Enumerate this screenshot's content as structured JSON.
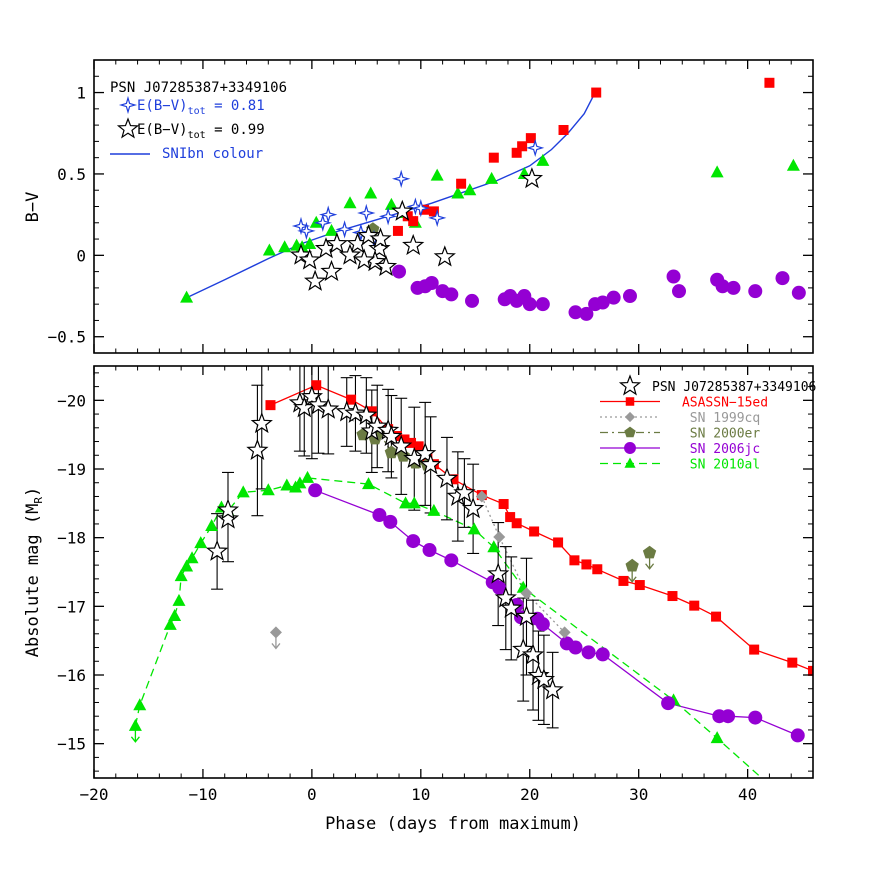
{
  "chart_data": [
    {
      "type": "scatter",
      "panel": "top",
      "ylabel": "B−V",
      "xlim": [
        -20,
        46
      ],
      "ylim": [
        -0.6,
        1.2
      ],
      "x_ticks": [
        -20,
        -10,
        0,
        10,
        20,
        30,
        40
      ],
      "y_ticks": [
        -0.5,
        0,
        0.5,
        1
      ],
      "y_tick_labels": [
        "−0.5",
        "0",
        "0.5",
        "1"
      ],
      "legend": {
        "position": "top-left",
        "title": "PSN J07285387+3349106",
        "entries": [
          {
            "label": "E(B−V)",
            "sub": "tot",
            "value": "= 0.81",
            "color": "#1f3fdc",
            "marker": "star4"
          },
          {
            "label": "E(B−V)",
            "sub": "tot",
            "value": "= 0.99",
            "color": "#000000",
            "marker": "star5"
          },
          {
            "label": "SNIbn colour",
            "color": "#1f3fdc",
            "marker": "line"
          }
        ]
      },
      "series": [
        {
          "key": "curve",
          "color": "#1f3fdc",
          "marker": "line",
          "x": [
            -11.5,
            -8,
            -4,
            -1,
            2,
            5,
            8,
            11,
            14,
            17,
            20,
            22,
            23.5,
            25,
            26
          ],
          "y": [
            -0.26,
            -0.15,
            -0.02,
            0.07,
            0.14,
            0.2,
            0.26,
            0.32,
            0.39,
            0.46,
            0.55,
            0.65,
            0.75,
            0.87,
            1.0
          ]
        },
        {
          "key": "star4",
          "color": "#1f3fdc",
          "marker": "star4",
          "x": [
            -1,
            1,
            -0.5,
            1.5,
            3,
            5,
            7,
            4.5,
            9.5,
            8.2,
            20.5,
            11.5,
            10,
            5.7
          ],
          "y": [
            0.18,
            0.2,
            0.15,
            0.25,
            0.16,
            0.26,
            0.24,
            0.14,
            0.3,
            0.47,
            0.66,
            0.23,
            0.29,
            0.1
          ]
        },
        {
          "key": "star5",
          "color": "#000000",
          "marker": "star5",
          "x": [
            -1,
            -0.2,
            0.3,
            1.3,
            2.3,
            1.8,
            4.2,
            5.2,
            6.2,
            5.8,
            6.8,
            4.8,
            3.5,
            6.3,
            8.3,
            9.3,
            12.2,
            20.2
          ],
          "y": [
            0.0,
            -0.03,
            -0.16,
            0.04,
            0.07,
            -0.1,
            0.07,
            0.12,
            0.04,
            -0.04,
            -0.07,
            -0.03,
            0.0,
            0.1,
            0.27,
            0.06,
            -0.01,
            0.47
          ]
        },
        {
          "key": "asassn",
          "color": "#ff0000",
          "marker": "square",
          "x": [
            7.9,
            8.8,
            9.3,
            10.3,
            11.2,
            13.7,
            16.7,
            18.8,
            19.3,
            20.1,
            23.1,
            26.1,
            42
          ],
          "y": [
            0.15,
            0.24,
            0.21,
            0.28,
            0.27,
            0.44,
            0.6,
            0.63,
            0.67,
            0.72,
            0.77,
            1.0,
            1.06
          ]
        },
        {
          "key": "sn2000er",
          "color": "#6b7b43",
          "marker": "pentagon",
          "x": [
            5.6
          ],
          "y": [
            0.16
          ]
        },
        {
          "key": "sn2006jc",
          "color": "#9400d3",
          "marker": "circle",
          "x": [
            8,
            9.7,
            10.4,
            11,
            12,
            12.8,
            14.7,
            17.7,
            18.2,
            18.8,
            19.5,
            20,
            21.2,
            24.2,
            25.2,
            26,
            26.7,
            27.7,
            29.2,
            33.2,
            33.7,
            37.2,
            37.7,
            38.7,
            40.7,
            43.2,
            44.7
          ],
          "y": [
            -0.1,
            -0.2,
            -0.19,
            -0.17,
            -0.22,
            -0.24,
            -0.28,
            -0.27,
            -0.25,
            -0.28,
            -0.25,
            -0.3,
            -0.3,
            -0.35,
            -0.36,
            -0.3,
            -0.29,
            -0.26,
            -0.25,
            -0.13,
            -0.22,
            -0.15,
            -0.19,
            -0.2,
            -0.22,
            -0.14,
            -0.23
          ]
        },
        {
          "key": "sn2010al",
          "color": "#00e600",
          "marker": "triangle",
          "x": [
            -11.5,
            -3.9,
            -2.5,
            -1.4,
            -0.9,
            -0.2,
            0.4,
            1.8,
            3.5,
            5.4,
            7.3,
            8.4,
            9.5,
            11.5,
            13.4,
            14.5,
            16.5,
            19.5,
            21.2,
            37.2,
            44.2
          ],
          "y": [
            -0.26,
            0.03,
            0.05,
            0.06,
            0.05,
            0.07,
            0.2,
            0.15,
            0.32,
            0.38,
            0.31,
            0.26,
            0.2,
            0.49,
            0.38,
            0.4,
            0.47,
            0.5,
            0.58,
            0.51,
            0.55
          ]
        }
      ]
    },
    {
      "type": "scatter",
      "panel": "bottom",
      "xlabel": "Phase (days from maximum)",
      "ylabel": "Absolute mag (M",
      "ylabel_sub": "R",
      "ylabel_suffix": ")",
      "xlim": [
        -20,
        46
      ],
      "ylim": [
        -14.5,
        -20.5
      ],
      "x_ticks": [
        -20,
        -10,
        0,
        10,
        20,
        30,
        40
      ],
      "x_tick_labels": [
        "−20",
        "−10",
        "0",
        "10",
        "20",
        "30",
        "40"
      ],
      "y_ticks": [
        -15,
        -16,
        -17,
        -18,
        -19,
        -20
      ],
      "y_tick_labels": [
        "−15",
        "−16",
        "−17",
        "−18",
        "−19",
        "−20"
      ],
      "legend": {
        "position": "top-right",
        "entries": [
          {
            "label": "PSN J07285387+3349106",
            "color": "#000000",
            "marker": "star5",
            "line": "none"
          },
          {
            "label": "ASASSN−15ed",
            "color": "#ff0000",
            "marker": "square",
            "line": "solid"
          },
          {
            "label": "SN 1999cq",
            "color": "#999999",
            "marker": "diamond",
            "line": "dotted"
          },
          {
            "label": "SN 2000er",
            "color": "#6b7b43",
            "marker": "pentagon",
            "line": "dashdot"
          },
          {
            "label": "SN 2006jc",
            "color": "#9400d3",
            "marker": "circle",
            "line": "solid"
          },
          {
            "label": "SN 2010al",
            "color": "#00e600",
            "marker": "triangle",
            "line": "dashed"
          }
        ]
      },
      "series": [
        {
          "key": "psn",
          "color": "#000000",
          "marker": "star5",
          "x": [
            -8.7,
            -7.7,
            -7.7,
            -5,
            -4.6,
            -1.1,
            -0.7,
            0,
            0.6,
            1.5,
            3.2,
            4,
            5,
            5.5,
            6,
            7,
            7.3,
            8.2,
            9.4,
            10.4,
            10.9,
            12.4,
            13.4,
            14,
            14.8,
            17.1,
            17.8,
            18.3,
            19.4,
            19.7,
            20.3,
            20.8,
            21.3,
            22.1
          ],
          "y": [
            -17.8,
            -18.27,
            -18.4,
            -19.27,
            -19.66,
            -19.96,
            -19.89,
            -20.05,
            -19.93,
            -19.87,
            -19.83,
            -19.81,
            -19.78,
            -19.55,
            -19.62,
            -19.56,
            -19.47,
            -19.33,
            -19.15,
            -19.22,
            -19.06,
            -18.86,
            -18.6,
            -18.65,
            -18.42,
            -17.47,
            -17.12,
            -16.97,
            -16.37,
            -16.85,
            -16.29,
            -15.99,
            -15.93,
            -15.78
          ]
        },
        {
          "key": "psn_err",
          "color": "#000000",
          "marker": "errorbar",
          "x": [
            -8.7,
            -7.7,
            -5,
            -4.6,
            -1.1,
            -0.7,
            0,
            0.6,
            1.5,
            3.2,
            4,
            5,
            5.5,
            6,
            7,
            7.3,
            8.2,
            9.4,
            10.4,
            10.9,
            12.4,
            13.4,
            14,
            14.8,
            17.1,
            17.8,
            18.3,
            19.4,
            19.7,
            20.3,
            20.8,
            21.3,
            22.1
          ],
          "y": [
            -17.8,
            -18.3,
            -19.27,
            -19.66,
            -19.96,
            -19.89,
            -20.05,
            -19.93,
            -19.87,
            -19.83,
            -19.81,
            -19.78,
            -19.55,
            -19.62,
            -19.56,
            -19.47,
            -19.33,
            -19.15,
            -19.22,
            -19.06,
            -18.86,
            -18.6,
            -18.65,
            -18.42,
            -17.47,
            -17.12,
            -16.97,
            -16.37,
            -16.85,
            -16.29,
            -15.99,
            -15.93,
            -15.78
          ],
          "err": [
            0.55,
            0.65,
            0.95,
            0.95,
            0.7,
            0.7,
            0.9,
            0.7,
            0.65,
            0.5,
            0.55,
            0.55,
            0.6,
            0.6,
            0.6,
            0.6,
            0.7,
            0.75,
            0.75,
            0.7,
            0.6,
            0.65,
            0.5,
            0.65,
            0.75,
            0.75,
            0.75,
            0.75,
            0.85,
            0.8,
            0.65,
            0.65,
            0.55
          ]
        },
        {
          "key": "asassn",
          "color": "#ff0000",
          "marker": "square",
          "line": "solid",
          "x": [
            -3.8,
            0.4,
            3.6,
            5.5,
            7,
            7.8,
            8.5,
            9.1,
            9.8,
            10.6,
            11.2,
            13,
            15.6,
            17.6,
            18.2,
            18.8,
            20.4,
            22.6,
            24.1,
            25.2,
            26.2,
            28.6,
            30.1,
            33.1,
            35.1,
            37.1,
            40.6,
            44.1,
            46
          ],
          "y": [
            -19.93,
            -20.22,
            -20.01,
            -19.84,
            -19.58,
            -19.48,
            -19.43,
            -19.38,
            -19.33,
            -19.17,
            -19.07,
            -18.85,
            -18.62,
            -18.49,
            -18.3,
            -18.21,
            -18.09,
            -17.93,
            -17.67,
            -17.61,
            -17.54,
            -17.37,
            -17.31,
            -17.15,
            -17.01,
            -16.85,
            -16.37,
            -16.18,
            -16.06
          ]
        },
        {
          "key": "sn1999cq",
          "color": "#999999",
          "marker": "diamond",
          "line": "dotted",
          "x": [
            -3.3,
            15.6,
            17.2,
            19.7,
            23.2
          ],
          "y": [
            -16.62,
            -18.6,
            -18.01,
            -17.19,
            -16.62
          ]
        },
        {
          "key": "sn1999cq_up",
          "color": "#999999",
          "marker": "arrow",
          "x": [
            -3.3
          ],
          "y": [
            -16.62
          ]
        },
        {
          "key": "sn2000er",
          "color": "#6b7b43",
          "marker": "pentagon",
          "line": "dashdot",
          "x": [
            4.7,
            5.8,
            6.2,
            7.3,
            8.4,
            9.5,
            10.6,
            29.4,
            31
          ],
          "y": [
            -19.5,
            -19.44,
            -19.53,
            -19.24,
            -19.19,
            -19.09,
            -19.06,
            -17.59,
            -17.78
          ]
        },
        {
          "key": "sn2000er_up",
          "color": "#6b7b43",
          "marker": "arrow",
          "x": [
            29.4,
            31
          ],
          "y": [
            -17.59,
            -17.78
          ]
        },
        {
          "key": "sn2006jc",
          "color": "#9400d3",
          "marker": "circle",
          "line": "solid",
          "x": [
            0.3,
            6.2,
            7.2,
            9.3,
            10.8,
            12.8,
            16.6,
            17.2,
            18.8,
            19.2,
            20.7,
            21.2,
            23.4,
            24.2,
            25.4,
            26.7,
            32.7,
            37.4,
            38.2,
            40.7,
            44.6
          ],
          "y": [
            -18.69,
            -18.33,
            -18.23,
            -17.95,
            -17.82,
            -17.67,
            -17.35,
            -17.27,
            -17.02,
            -16.84,
            -16.82,
            -16.74,
            -16.46,
            -16.4,
            -16.33,
            -16.3,
            -15.59,
            -15.4,
            -15.4,
            -15.38,
            -15.12
          ]
        },
        {
          "key": "sn2010al",
          "color": "#00e600",
          "marker": "triangle",
          "line": "dashed",
          "x": [
            -16.2,
            -15.8,
            -13,
            -12.6,
            -12.2,
            -12,
            -11.5,
            -11,
            -10.2,
            -9.2,
            -8.3,
            -7.7,
            -6.3,
            -4,
            -2.3,
            -1.5,
            -1.1,
            -0.4,
            5.2,
            8.6,
            9.4,
            11.2,
            14.9,
            16.7,
            19.4,
            33.2,
            37.2,
            42
          ],
          "y": [
            -15.26,
            -15.56,
            -16.73,
            -16.86,
            -17.08,
            -17.44,
            -17.58,
            -17.7,
            -17.92,
            -18.17,
            -18.44,
            -18.39,
            -18.66,
            -18.69,
            -18.76,
            -18.73,
            -18.79,
            -18.87,
            -18.78,
            -18.5,
            -18.5,
            -18.39,
            -18.12,
            -17.86,
            -17.27,
            -15.63,
            -15.08,
            -14.4
          ]
        },
        {
          "key": "sn2010al_up",
          "color": "#00e600",
          "marker": "arrow",
          "x": [
            -16.2
          ],
          "y": [
            -15.26
          ]
        }
      ]
    }
  ]
}
